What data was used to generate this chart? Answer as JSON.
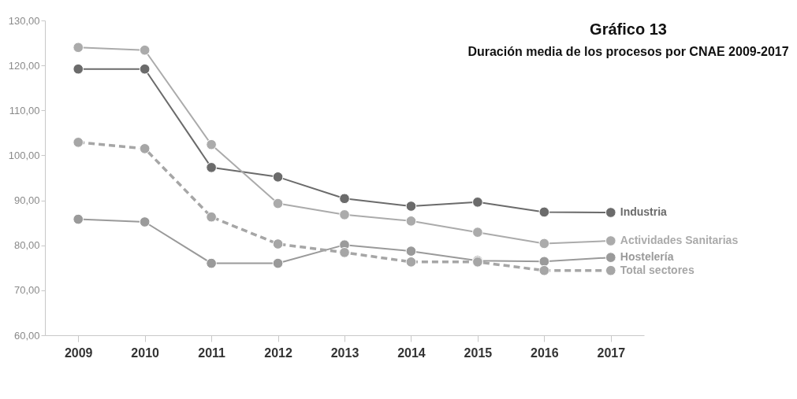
{
  "chart_data": {
    "type": "line",
    "title": "Gráfico 13",
    "subtitle": "Duración media de los procesos por CNAE 2009-2017",
    "categories": [
      "2009",
      "2010",
      "2011",
      "2012",
      "2013",
      "2014",
      "2015",
      "2016",
      "2017"
    ],
    "series": [
      {
        "name": "Industria",
        "color": "#6b6b6b",
        "values": [
          119.2,
          119.2,
          97.3,
          95.2,
          90.4,
          88.7,
          89.6,
          87.4,
          87.3
        ]
      },
      {
        "name": "Actividades Sanitarias",
        "color": "#ababab",
        "values": [
          124.0,
          123.4,
          102.4,
          89.3,
          86.8,
          85.4,
          82.9,
          80.4,
          81.0
        ]
      },
      {
        "name": "Hostelería",
        "color": "#9a9a9a",
        "values": [
          85.8,
          85.2,
          76.0,
          76.0,
          80.1,
          78.7,
          76.6,
          76.4,
          77.3
        ]
      },
      {
        "name": "Total sectores",
        "color": "#a6a6a6",
        "line_style": "dashed",
        "values": [
          102.9,
          101.5,
          86.3,
          80.3,
          78.4,
          76.3,
          76.3,
          74.4,
          74.4
        ]
      }
    ],
    "ylim": [
      60,
      130
    ],
    "yticks": [
      {
        "value": 60,
        "label": "60,00"
      },
      {
        "value": 70,
        "label": "70,00"
      },
      {
        "value": 80,
        "label": "80,00"
      },
      {
        "value": 90,
        "label": "90,00"
      },
      {
        "value": 100,
        "label": "100,00"
      },
      {
        "value": 110,
        "label": "110,00"
      },
      {
        "value": 120,
        "label": "120,00"
      },
      {
        "value": 130,
        "label": "130,00"
      }
    ],
    "legend": false,
    "marker": "circle"
  }
}
